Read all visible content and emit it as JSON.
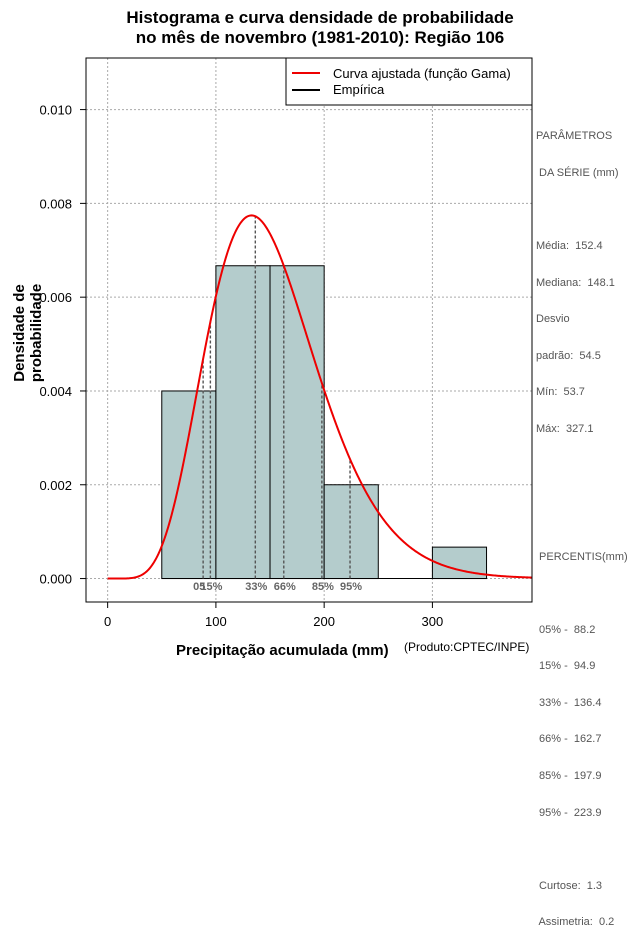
{
  "title_line1": "Histograma e curva densidade de probabilidade",
  "title_line2": "no mês de novembro (1981-2010): Região 106",
  "credit": "(Produto:CPTEC/INPE)",
  "colors": {
    "bar_fill": "#b4cccc",
    "curve": "#ee0000",
    "grid": "#aaaaaa",
    "pct_line": "#555555"
  },
  "chart_data": {
    "type": "bar",
    "xlabel": "Precipitação acumulada (mm)",
    "ylabel": "Densidade de probabilidade",
    "xlim": [
      -20,
      392
    ],
    "ylim": [
      -0.0005,
      0.0111
    ],
    "x_ticks": [
      0,
      100,
      200,
      300
    ],
    "y_ticks": [
      0.0,
      0.002,
      0.004,
      0.006,
      0.008,
      0.01
    ],
    "y_tick_labels": [
      "0.000",
      "0.002",
      "0.004",
      "0.006",
      "0.008",
      "0.010"
    ],
    "bins": [
      {
        "from": 50,
        "to": 100,
        "density": 0.004
      },
      {
        "from": 100,
        "to": 150,
        "density": 0.00667
      },
      {
        "from": 150,
        "to": 200,
        "density": 0.00667
      },
      {
        "from": 200,
        "to": 250,
        "density": 0.002
      },
      {
        "from": 250,
        "to": 300,
        "density": 0.0
      },
      {
        "from": 300,
        "to": 350,
        "density": 0.00067
      }
    ],
    "gamma_fit": {
      "mean": 152.4,
      "sd": 54.5
    },
    "percentiles": [
      {
        "label": "05%",
        "value": 88.2
      },
      {
        "label": "15%",
        "value": 94.9
      },
      {
        "label": "33%",
        "value": 136.4
      },
      {
        "label": "66%",
        "value": 162.7
      },
      {
        "label": "85%",
        "value": 197.9
      },
      {
        "label": "95%",
        "value": 223.9
      }
    ],
    "percentile_axis_labels": [
      "05",
      "15%",
      "33%",
      "66%",
      "85%",
      "95%"
    ],
    "legend": [
      "Curva ajustada (função Gama)",
      "Empírica"
    ]
  },
  "side_panel": {
    "params_title_1": "PARÂMETROS",
    "params_title_2": " DA SÉRIE (mm)",
    "media": "Média:  152.4",
    "mediana": "Mediana:  148.1",
    "desvio_1": "Desvio",
    "desvio_2": "padrão:  54.5",
    "min": "Mín:  53.7",
    "max": "Máx:  327.1",
    "percentis_title": " PERCENTIS(mm)",
    "p05": " 05% -  88.2",
    "p15": " 15% -  94.9",
    "p33": " 33% -  136.4",
    "p66": " 66% -  162.7",
    "p85": " 85% -  197.9",
    "p95": " 95% -  223.9",
    "curtose": " Curtose:  1.3",
    "assimetria": " Assimetria:  0.2"
  }
}
